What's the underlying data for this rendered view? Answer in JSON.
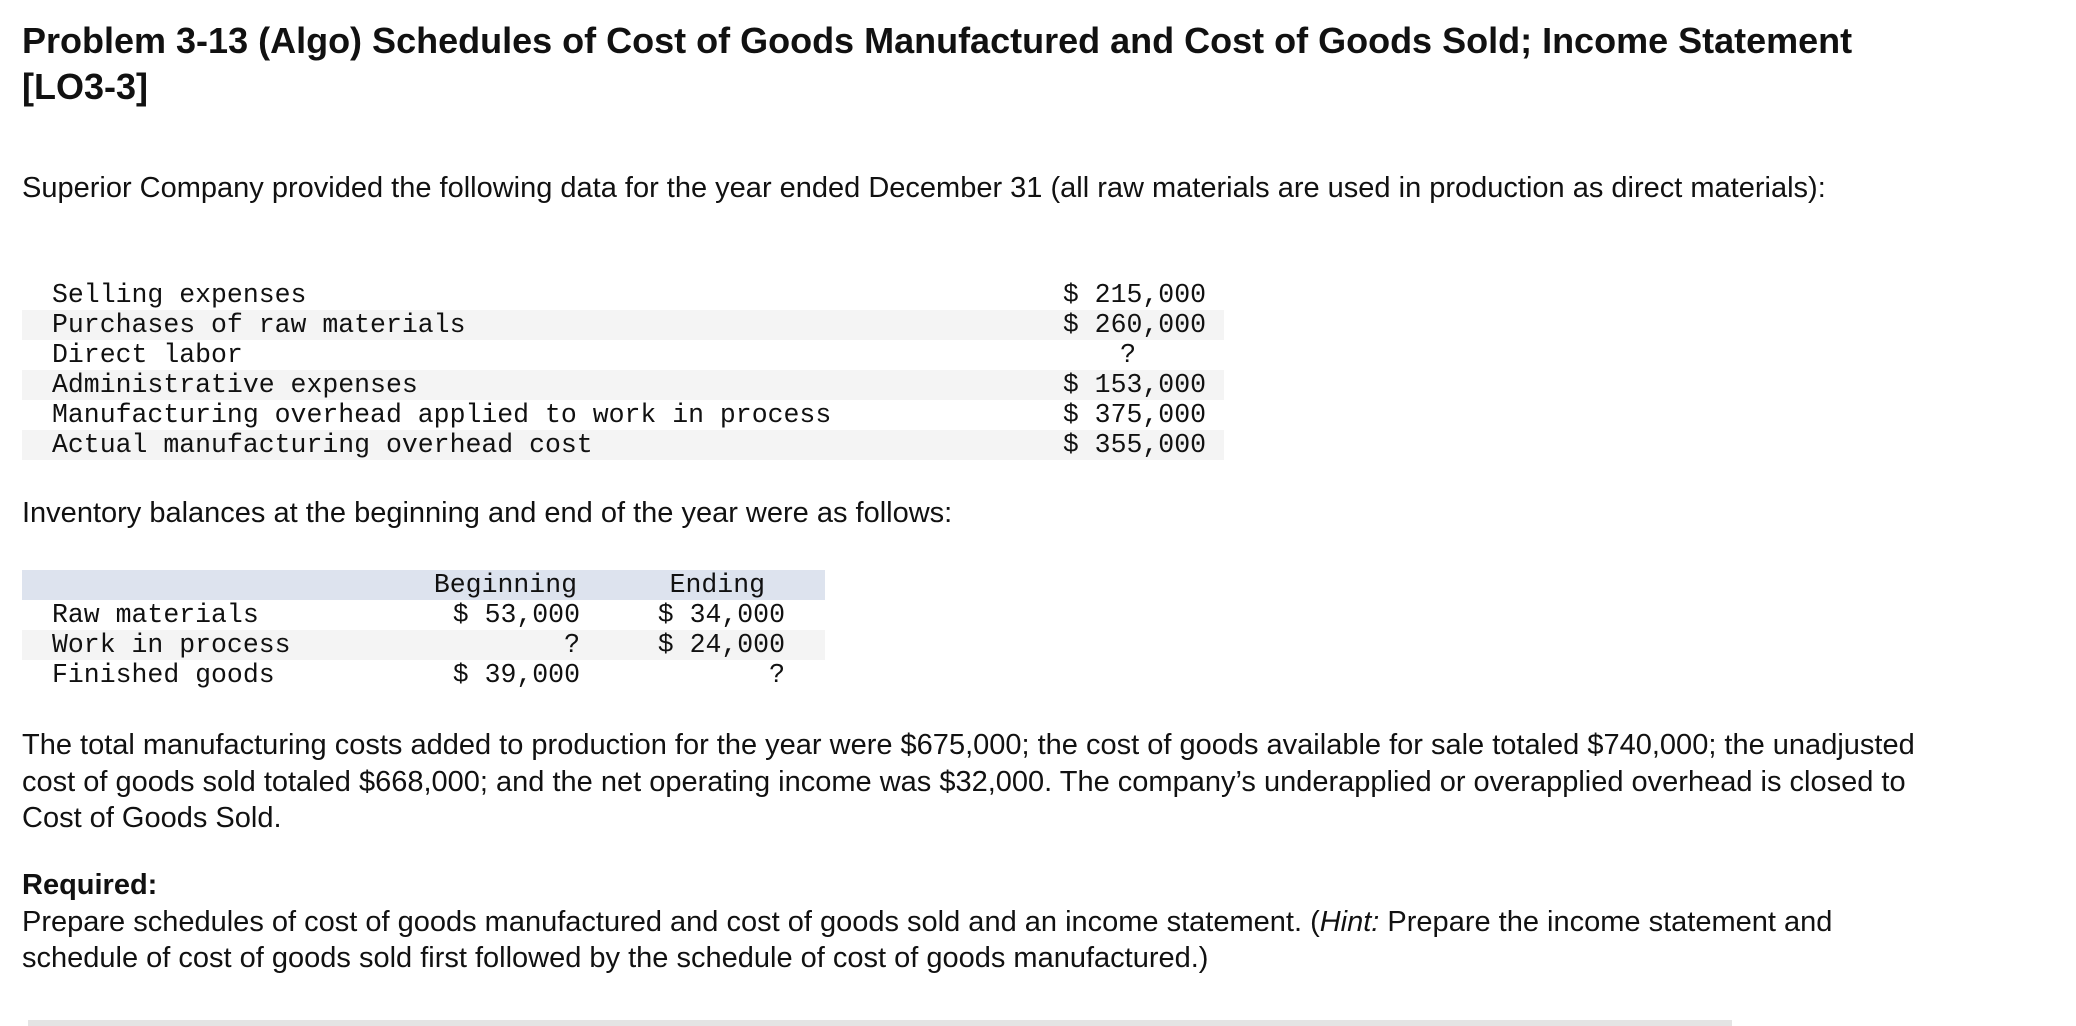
{
  "title": "Problem 3-13 (Algo) Schedules of Cost of Goods Manufactured and Cost of Goods Sold; Income Statement [LO3-3]",
  "intro": "Superior Company provided the following data for the year ended December 31 (all raw materials are used in production as direct materials):",
  "data_rows": [
    {
      "label": "Selling expenses",
      "value": "$ 215,000"
    },
    {
      "label": "Purchases of raw materials",
      "value": "$ 260,000"
    },
    {
      "label": "Direct labor",
      "value": "?"
    },
    {
      "label": "Administrative expenses",
      "value": "$ 153,000"
    },
    {
      "label": "Manufacturing overhead applied to work in process",
      "value": "$ 375,000"
    },
    {
      "label": "Actual manufacturing overhead cost",
      "value": "$ 355,000"
    }
  ],
  "inventory_intro": "Inventory balances at the beginning and end of the year were as follows:",
  "inventory": {
    "headers": {
      "beginning": "Beginning",
      "ending": "Ending"
    },
    "rows": [
      {
        "label": "Raw materials",
        "beginning": "$ 53,000",
        "ending": "$ 34,000"
      },
      {
        "label": "Work in process",
        "beginning": "?",
        "ending": "$ 24,000"
      },
      {
        "label": "Finished goods",
        "beginning": "$ 39,000",
        "ending": "?"
      }
    ]
  },
  "facts": "The total manufacturing costs added to production for the year were $675,000; the cost of goods available for sale totaled $740,000; the unadjusted cost of goods sold totaled $668,000; and the net operating income was $32,000. The company’s underapplied or overapplied overhead is closed to Cost of Goods Sold.",
  "required": {
    "label": "Required:",
    "text_before_hint": "Prepare schedules of cost of goods manufactured and cost of goods sold and an income statement. (",
    "hint_word": "Hint:",
    "text_after_hint": " Prepare the income statement and schedule of cost of goods sold first followed by the schedule of cost of goods manufactured.)"
  }
}
